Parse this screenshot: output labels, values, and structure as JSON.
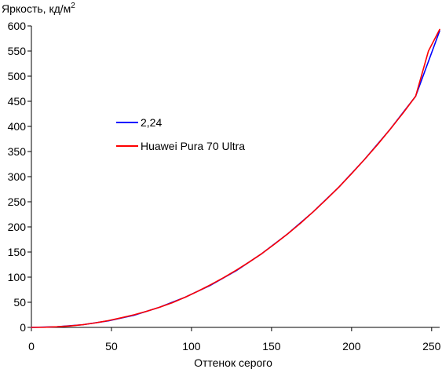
{
  "chart_data": {
    "type": "line",
    "ylabel": "Яркость, кд/м",
    "ylabel_superscript": "2",
    "xlabel": "Оттенок серого",
    "xlim": [
      0,
      255
    ],
    "ylim": [
      0,
      600
    ],
    "x_ticks": [
      0,
      50,
      100,
      150,
      200,
      250
    ],
    "y_ticks": [
      0,
      50,
      100,
      150,
      200,
      250,
      300,
      350,
      400,
      450,
      500,
      550,
      600
    ],
    "grid": false,
    "legend_position": "middle-left",
    "series": [
      {
        "name": "2,24",
        "color": "#0000ff",
        "x": [
          0,
          16,
          32,
          48,
          64,
          80,
          96,
          112,
          128,
          144,
          160,
          176,
          192,
          208,
          224,
          240,
          255
        ],
        "y": [
          0,
          1.2,
          5.3,
          13,
          24,
          40,
          60,
          84,
          113,
          147,
          186,
          230,
          279,
          334,
          394,
          460,
          590
        ]
      },
      {
        "name": "Huawei Pura 70 Ultra",
        "color": "#ff0000",
        "x": [
          0,
          8,
          16,
          24,
          32,
          40,
          48,
          56,
          64,
          72,
          80,
          88,
          96,
          104,
          112,
          120,
          128,
          136,
          144,
          152,
          160,
          168,
          176,
          184,
          192,
          200,
          208,
          216,
          224,
          232,
          240,
          248,
          255
        ],
        "y": [
          0,
          0.3,
          1.2,
          2.8,
          5.3,
          9,
          13.5,
          19,
          25,
          32,
          40,
          49,
          60,
          72,
          85,
          99,
          114,
          130,
          147,
          166,
          186,
          207,
          230,
          254,
          279,
          306,
          334,
          363,
          394,
          426,
          460,
          550,
          593
        ]
      }
    ]
  }
}
